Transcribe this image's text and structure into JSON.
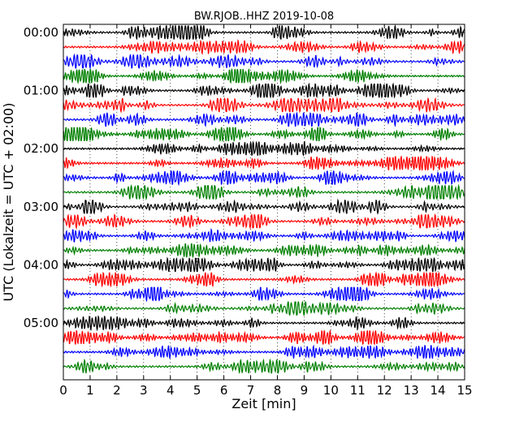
{
  "chart_data": {
    "type": "line",
    "title": "BW.RJOB..HHZ 2019-10-08",
    "xlabel": "Zeit  [min]",
    "ylabel": "UTC (Lokalzeit = UTC + 02:00)",
    "xlim": [
      0,
      15
    ],
    "x_ticks": [
      "0",
      "1",
      "2",
      "3",
      "4",
      "5",
      "6",
      "7",
      "8",
      "9",
      "10",
      "11",
      "12",
      "13",
      "14",
      "15"
    ],
    "y_ticks": [
      {
        "label": "00:00",
        "trace": 0
      },
      {
        "label": "01:00",
        "trace": 4
      },
      {
        "label": "02:00",
        "trace": 8
      },
      {
        "label": "03:00",
        "trace": 12
      },
      {
        "label": "04:00",
        "trace": 16
      },
      {
        "label": "05:00",
        "trace": 20
      }
    ],
    "trace_minutes": 15,
    "trace_count": 24,
    "colors": [
      "#000000",
      "#ff0000",
      "#0000ff",
      "#008000"
    ],
    "grid": "vertical-dotted"
  }
}
